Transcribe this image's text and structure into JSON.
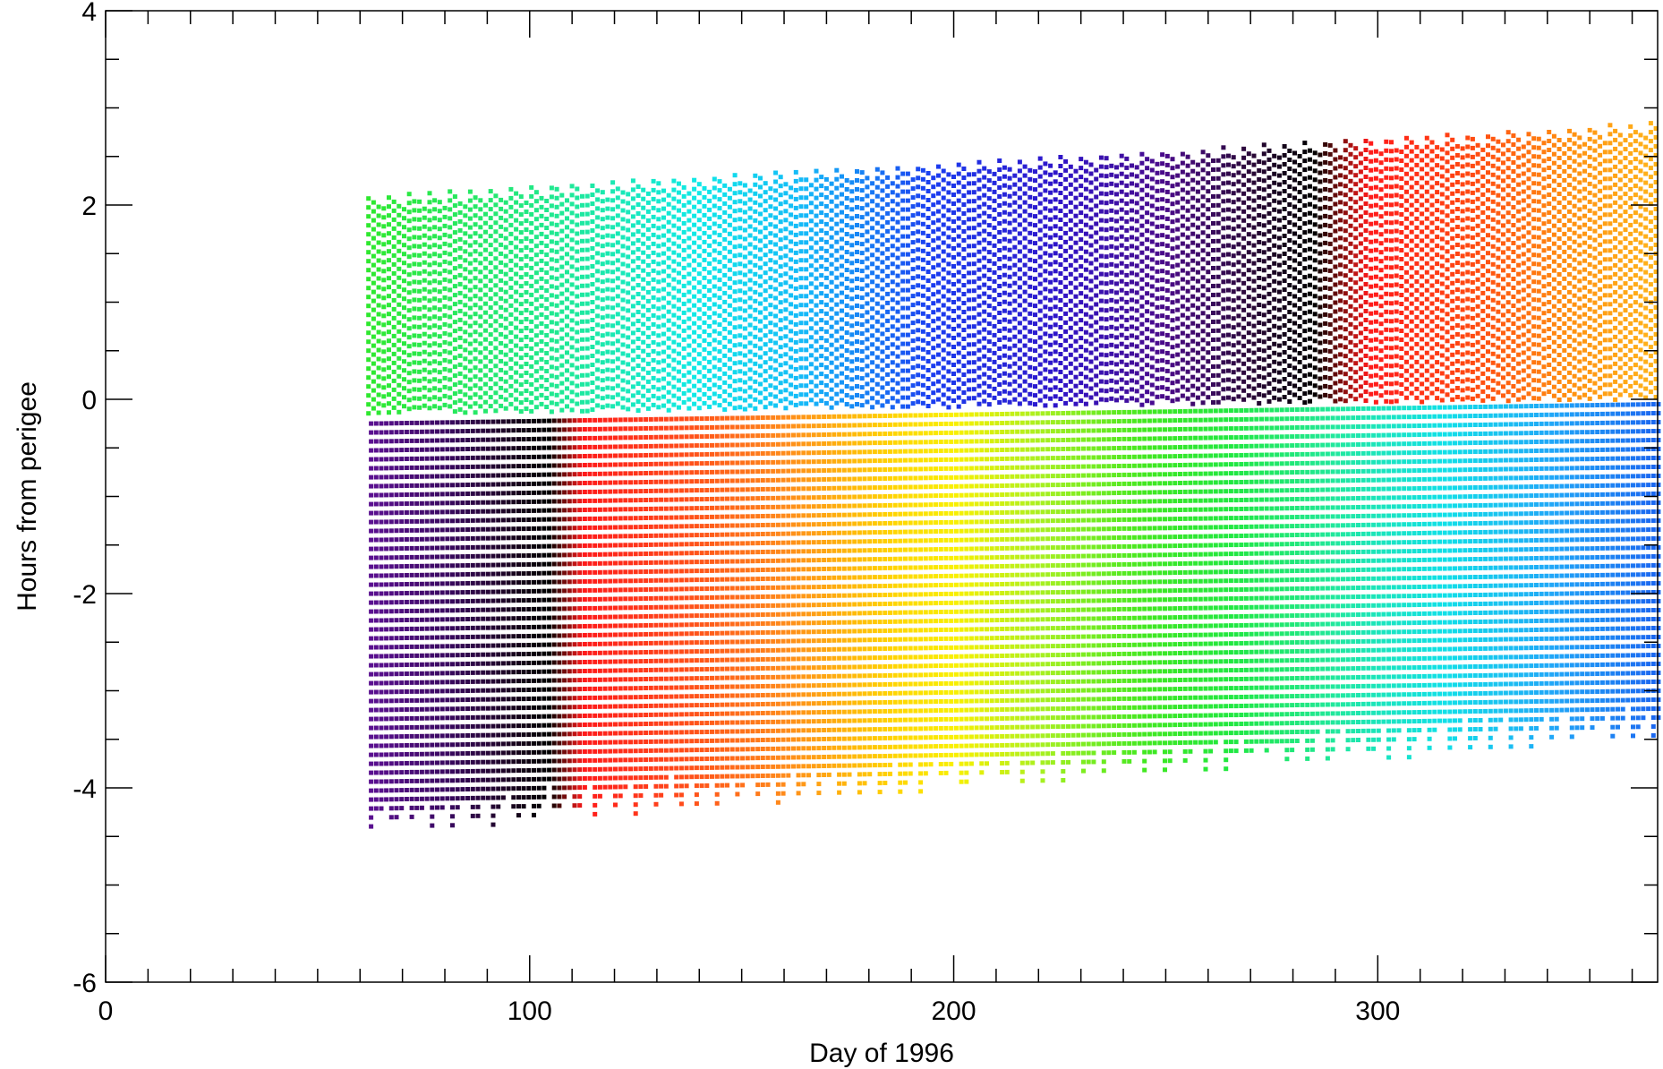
{
  "chart_data": {
    "type": "scatter",
    "title": "",
    "xlabel": "Day of 1996",
    "ylabel": "Hours from perigee",
    "xlim": [
      0,
      366
    ],
    "ylim": [
      -6,
      4
    ],
    "x_ticks": [
      0,
      100,
      200,
      300
    ],
    "x_tick_labels": [
      "0",
      "100",
      "200",
      "300"
    ],
    "y_ticks": [
      -6,
      -4,
      -2,
      0,
      2,
      4
    ],
    "y_tick_labels": [
      "-6",
      "-4",
      "-2",
      "0",
      "2",
      "4"
    ],
    "x_minor_step": 10,
    "y_minor_step": 0.5,
    "grid": false,
    "legend": "none",
    "marker": "small squares in vertical dotted columns, one column per pass",
    "day_range": [
      62,
      366
    ],
    "column_spacing_days": 1.2,
    "upper_band": {
      "description": "positive-hour passes, color cycles green to cyan to blue to purple to black to red to orange",
      "bottom_hours": {
        "start": -0.15,
        "end": 0.0
      },
      "top_hours": {
        "start": 2.1,
        "end": 2.85
      }
    },
    "lower_band": {
      "description": "negative-hour passes, color cycles purple to black to red to orange to yellow to green to cyan to blue",
      "top_hours": {
        "start": -0.25,
        "end": -0.05
      },
      "bottom_hours": {
        "start": -4.5,
        "end": -3.5
      }
    },
    "upper_band_colors": [
      {
        "day": 62,
        "color": "#2ee82e"
      },
      {
        "day": 110,
        "color": "#1ee89a"
      },
      {
        "day": 140,
        "color": "#10e8e8"
      },
      {
        "day": 165,
        "color": "#14b8f8"
      },
      {
        "day": 195,
        "color": "#1a3cf0"
      },
      {
        "day": 225,
        "color": "#2f14c8"
      },
      {
        "day": 250,
        "color": "#4a0a88"
      },
      {
        "day": 270,
        "color": "#2a0838"
      },
      {
        "day": 285,
        "color": "#000000"
      },
      {
        "day": 298,
        "color": "#ff1a1a"
      },
      {
        "day": 325,
        "color": "#ff5010"
      },
      {
        "day": 345,
        "color": "#ff9010"
      },
      {
        "day": 366,
        "color": "#ffb41a"
      }
    ],
    "lower_band_colors": [
      {
        "day": 62,
        "color": "#5a1090"
      },
      {
        "day": 80,
        "color": "#3a0860"
      },
      {
        "day": 95,
        "color": "#1a0420"
      },
      {
        "day": 104,
        "color": "#000000"
      },
      {
        "day": 112,
        "color": "#ff1a1a"
      },
      {
        "day": 135,
        "color": "#ff4a1a"
      },
      {
        "day": 160,
        "color": "#ff8c1a"
      },
      {
        "day": 185,
        "color": "#ffd400"
      },
      {
        "day": 200,
        "color": "#f8f000"
      },
      {
        "day": 220,
        "color": "#a8f020"
      },
      {
        "day": 245,
        "color": "#40e820"
      },
      {
        "day": 265,
        "color": "#20e840"
      },
      {
        "day": 290,
        "color": "#20e8a0"
      },
      {
        "day": 315,
        "color": "#10e0e8"
      },
      {
        "day": 340,
        "color": "#20a8f8"
      },
      {
        "day": 366,
        "color": "#1a64f0"
      }
    ]
  }
}
